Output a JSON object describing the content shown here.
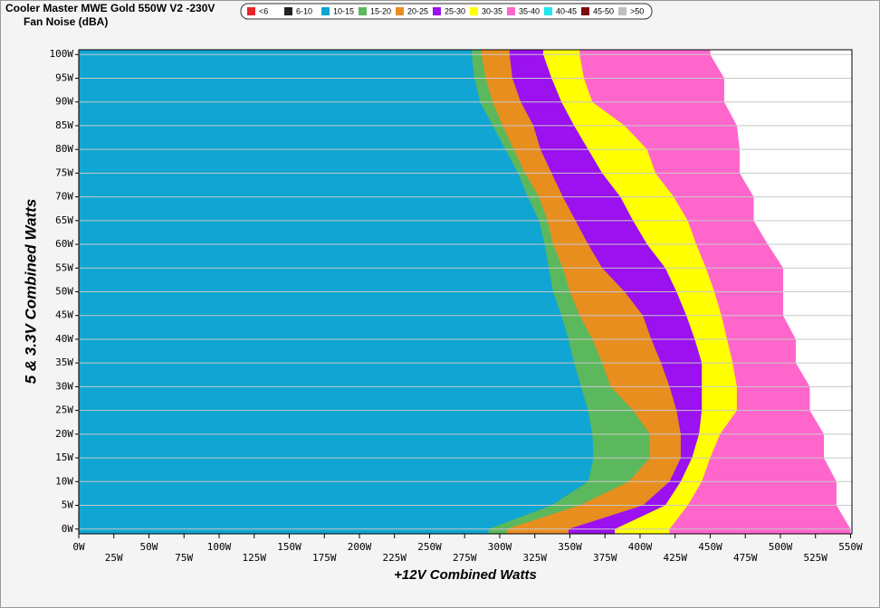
{
  "chart_data": {
    "type": "contour-area",
    "title": "Cooler Master MWE Gold 550W V2 -230V",
    "subtitle": "Fan Noise (dBA)",
    "x_label": "+12V Combined Watts",
    "y_label": "5 & 3.3V Combined Watts",
    "y": [
      0,
      5,
      10,
      15,
      20,
      25,
      30,
      35,
      40,
      45,
      50,
      55,
      60,
      65,
      70,
      75,
      80,
      85,
      90,
      95,
      100
    ],
    "series": [
      {
        "name": "<6",
        "color": "#e8262b"
      },
      {
        "name": "6-10",
        "color": "#222222"
      },
      {
        "name": "10-15",
        "color": "#10a5d2",
        "values": [
          292,
          337,
          363,
          367,
          366,
          363,
          358,
          353,
          349,
          344,
          338,
          335,
          332,
          328,
          320,
          313,
          304,
          295,
          286,
          282,
          280
        ]
      },
      {
        "name": "15-20",
        "color": "#5cb85c",
        "values": [
          305,
          357,
          392,
          407,
          407,
          395,
          379,
          373,
          366,
          357,
          350,
          345,
          338,
          334,
          328,
          318,
          310,
          302,
          295,
          290,
          287
        ]
      },
      {
        "name": "20-25",
        "color": "#e88e1f",
        "values": [
          349,
          402,
          421,
          429,
          429,
          426,
          421,
          415,
          408,
          402,
          389,
          373,
          363,
          354,
          345,
          337,
          329,
          324,
          315,
          309,
          307
        ]
      },
      {
        "name": "25-30",
        "color": "#9b11f0",
        "values": [
          382,
          418,
          429,
          437,
          442,
          444,
          444,
          444,
          439,
          433,
          426,
          418,
          405,
          395,
          386,
          373,
          363,
          353,
          344,
          337,
          331
        ]
      },
      {
        "name": "30-35",
        "color": "#ffff00",
        "values": [
          421,
          434,
          444,
          450,
          457,
          469,
          469,
          466,
          462,
          458,
          453,
          447,
          440,
          434,
          424,
          411,
          405,
          389,
          366,
          360,
          357
        ]
      },
      {
        "name": "35-40",
        "color": "#ff66cc",
        "values": [
          550,
          540,
          540,
          531,
          531,
          521,
          521,
          511,
          511,
          502,
          502,
          502,
          491,
          481,
          481,
          471,
          471,
          469,
          460,
          460,
          450
        ]
      },
      {
        "name": "40-45",
        "color": "#22e6f0"
      },
      {
        "name": "45-50",
        "color": "#7a0c0c"
      },
      {
        "name": ">50",
        "color": "#c0c0c0"
      }
    ],
    "xlim": [
      0,
      551
    ],
    "ylim": [
      -1,
      101
    ],
    "xticks": [
      {
        "value": 0,
        "label": "0W"
      },
      {
        "value": 25,
        "label": "25W"
      },
      {
        "value": 50,
        "label": "50W"
      },
      {
        "value": 75,
        "label": "75W"
      },
      {
        "value": 100,
        "label": "100W"
      },
      {
        "value": 125,
        "label": "125W"
      },
      {
        "value": 150,
        "label": "150W"
      },
      {
        "value": 175,
        "label": "175W"
      },
      {
        "value": 200,
        "label": "200W"
      },
      {
        "value": 225,
        "label": "225W"
      },
      {
        "value": 250,
        "label": "250W"
      },
      {
        "value": 275,
        "label": "275W"
      },
      {
        "value": 300,
        "label": "300W"
      },
      {
        "value": 325,
        "label": "325W"
      },
      {
        "value": 350,
        "label": "350W"
      },
      {
        "value": 375,
        "label": "375W"
      },
      {
        "value": 400,
        "label": "400W"
      },
      {
        "value": 425,
        "label": "425W"
      },
      {
        "value": 450,
        "label": "450W"
      },
      {
        "value": 475,
        "label": "475W"
      },
      {
        "value": 500,
        "label": "500W"
      },
      {
        "value": 525,
        "label": "525W"
      },
      {
        "value": 550,
        "label": "550W"
      }
    ],
    "yticks": [
      {
        "value": 0,
        "label": "0W"
      },
      {
        "value": 5,
        "label": "5W"
      },
      {
        "value": 10,
        "label": "10W"
      },
      {
        "value": 15,
        "label": "15W"
      },
      {
        "value": 20,
        "label": "20W"
      },
      {
        "value": 25,
        "label": "25W"
      },
      {
        "value": 30,
        "label": "30W"
      },
      {
        "value": 35,
        "label": "35W"
      },
      {
        "value": 40,
        "label": "40W"
      },
      {
        "value": 45,
        "label": "45W"
      },
      {
        "value": 50,
        "label": "50W"
      },
      {
        "value": 55,
        "label": "55W"
      },
      {
        "value": 60,
        "label": "60W"
      },
      {
        "value": 65,
        "label": "65W"
      },
      {
        "value": 70,
        "label": "70W"
      },
      {
        "value": 75,
        "label": "75W"
      },
      {
        "value": 80,
        "label": "80W"
      },
      {
        "value": 85,
        "label": "85W"
      },
      {
        "value": 90,
        "label": "90W"
      },
      {
        "value": 95,
        "label": "95W"
      },
      {
        "value": 100,
        "label": "100W"
      }
    ],
    "grid": true
  }
}
